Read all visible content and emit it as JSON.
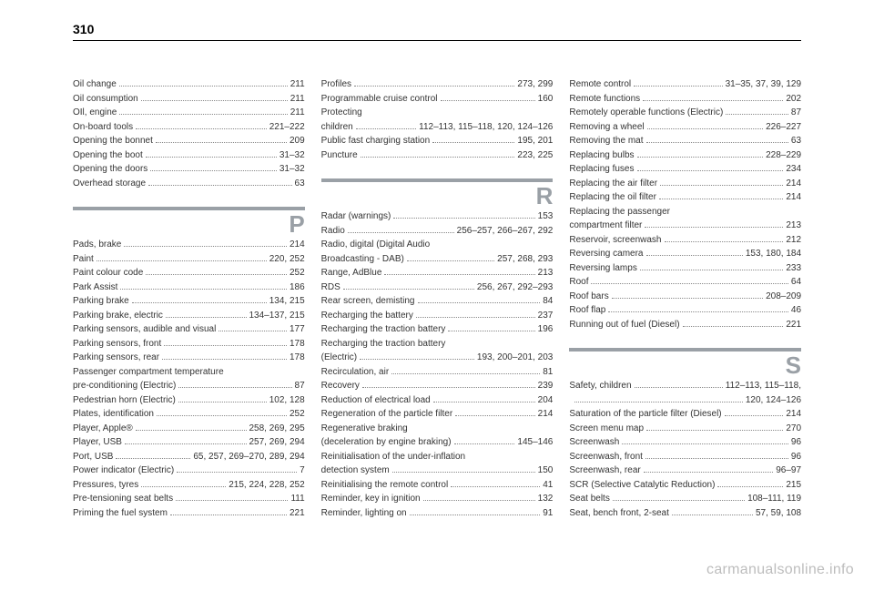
{
  "page_number": "310",
  "watermark": "carmanualsonline.info",
  "columns": [
    {
      "entries": [
        {
          "label": "Oil change",
          "pages": "211"
        },
        {
          "label": "Oil consumption",
          "pages": "211"
        },
        {
          "label": "OIl, engine",
          "pages": "211"
        },
        {
          "label": "On-board tools",
          "pages": "221–222"
        },
        {
          "label": "Opening the bonnet",
          "pages": "209"
        },
        {
          "label": "Opening the boot",
          "pages": "31–32"
        },
        {
          "label": "Opening the doors",
          "pages": "31–32"
        },
        {
          "label": "Overhead storage",
          "pages": "63"
        }
      ],
      "sections": [
        {
          "letter": "P",
          "entries": [
            {
              "label": "Pads, brake",
              "pages": "214"
            },
            {
              "label": "Paint",
              "pages": "220, 252"
            },
            {
              "label": "Paint colour code",
              "pages": "252"
            },
            {
              "label": "Park Assist",
              "pages": "186"
            },
            {
              "label": "Parking brake",
              "pages": "134, 215"
            },
            {
              "label": "Parking brake, electric",
              "pages": "134–137, 215"
            },
            {
              "label": "Parking sensors, audible and visual",
              "pages": "177"
            },
            {
              "label": "Parking sensors, front",
              "pages": "178"
            },
            {
              "label": "Parking sensors, rear",
              "pages": "178"
            },
            {
              "label": "Passenger compartment temperature",
              "noline": true
            },
            {
              "label": " pre-conditioning (Electric)",
              "pages": "87"
            },
            {
              "label": "Pedestrian horn (Electric)",
              "pages": "102, 128"
            },
            {
              "label": "Plates, identification",
              "pages": "252"
            },
            {
              "label": "Player, Apple®",
              "pages": "258, 269, 295"
            },
            {
              "label": "Player, USB",
              "pages": "257, 269, 294"
            },
            {
              "label": "Port, USB",
              "pages": "65, 257, 269–270, 289, 294"
            },
            {
              "label": "Power indicator (Electric)",
              "pages": "7"
            },
            {
              "label": "Pressures, tyres",
              "pages": "215, 224, 228, 252"
            },
            {
              "label": "Pre-tensioning seat belts",
              "pages": "111"
            },
            {
              "label": "Priming the fuel system",
              "pages": "221"
            }
          ]
        }
      ]
    },
    {
      "entries": [
        {
          "label": "Profiles",
          "pages": "273, 299"
        },
        {
          "label": "Programmable cruise control",
          "pages": "160"
        },
        {
          "label": "Protecting",
          "noline": true
        },
        {
          "label": "children",
          "pages": "112–113, 115–118, 120, 124–126"
        },
        {
          "label": "Public fast charging station",
          "pages": "195, 201"
        },
        {
          "label": "Puncture",
          "pages": "223, 225"
        }
      ],
      "sections": [
        {
          "letter": "R",
          "entries": [
            {
              "label": "Radar (warnings)",
              "pages": "153"
            },
            {
              "label": "Radio",
              "pages": "256–257, 266–267, 292"
            },
            {
              "label": "Radio, digital (Digital Audio",
              "noline": true
            },
            {
              "label": "Broadcasting - DAB)",
              "pages": "257, 268, 293"
            },
            {
              "label": "Range, AdBlue",
              "pages": "213"
            },
            {
              "label": "RDS",
              "pages": "256, 267, 292–293"
            },
            {
              "label": "Rear screen, demisting",
              "pages": "84"
            },
            {
              "label": "Recharging the battery",
              "pages": "237"
            },
            {
              "label": "Recharging the traction battery",
              "pages": "196"
            },
            {
              "label": "Recharging the traction battery",
              "noline": true
            },
            {
              "label": "(Electric)",
              "pages": "193, 200–201, 203"
            },
            {
              "label": "Recirculation, air",
              "pages": "81"
            },
            {
              "label": "Recovery",
              "pages": "239"
            },
            {
              "label": "Reduction of electrical load",
              "pages": "204"
            },
            {
              "label": "Regeneration of the particle filter",
              "pages": "214"
            },
            {
              "label": "Regenerative braking",
              "noline": true
            },
            {
              "label": "(deceleration by engine braking)",
              "pages": "145–146"
            },
            {
              "label": "Reinitialisation of the under-inflation",
              "noline": true
            },
            {
              "label": "detection system",
              "pages": "150"
            },
            {
              "label": "Reinitialising the remote control",
              "pages": "41"
            },
            {
              "label": "Reminder, key in ignition",
              "pages": "132"
            },
            {
              "label": "Reminder, lighting on",
              "pages": "91"
            }
          ]
        }
      ]
    },
    {
      "entries": [
        {
          "label": "Remote control",
          "pages": "31–35, 37, 39, 129"
        },
        {
          "label": "Remote functions",
          "pages": "202"
        },
        {
          "label": "Remotely operable functions (Electric)",
          "pages": "87"
        },
        {
          "label": "Removing a wheel",
          "pages": "226–227"
        },
        {
          "label": "Removing the mat",
          "pages": "63"
        },
        {
          "label": "Replacing bulbs",
          "pages": "228–229"
        },
        {
          "label": "Replacing fuses",
          "pages": "234"
        },
        {
          "label": "Replacing the air filter",
          "pages": "214"
        },
        {
          "label": "Replacing the oil filter",
          "pages": "214"
        },
        {
          "label": "Replacing the passenger",
          "noline": true
        },
        {
          "label": "compartment filter",
          "pages": "213"
        },
        {
          "label": "Reservoir, screenwash",
          "pages": "212"
        },
        {
          "label": "Reversing camera",
          "pages": "153, 180, 184"
        },
        {
          "label": "Reversing lamps",
          "pages": "233"
        },
        {
          "label": "Roof",
          "pages": "64"
        },
        {
          "label": "Roof bars",
          "pages": "208–209"
        },
        {
          "label": "Roof flap",
          "pages": "46"
        },
        {
          "label": "Running out of fuel (Diesel)",
          "pages": "221"
        }
      ],
      "sections": [
        {
          "letter": "S",
          "entries": [
            {
              "label": "Safety, children",
              "pages": "112–113, 115–118,"
            },
            {
              "label": "",
              "pages": "120, 124–126",
              "continuation": true
            },
            {
              "label": "Saturation of the particle filter (Diesel)",
              "pages": "214"
            },
            {
              "label": "Screen menu map",
              "pages": "270"
            },
            {
              "label": "Screenwash",
              "pages": "96"
            },
            {
              "label": "Screenwash, front",
              "pages": "96"
            },
            {
              "label": "Screenwash, rear",
              "pages": "96–97"
            },
            {
              "label": "SCR (Selective Catalytic Reduction)",
              "pages": "215"
            },
            {
              "label": "Seat belts",
              "pages": "108–111, 119"
            },
            {
              "label": "Seat, bench front, 2-seat",
              "pages": "57, 59, 108"
            }
          ]
        }
      ]
    }
  ]
}
